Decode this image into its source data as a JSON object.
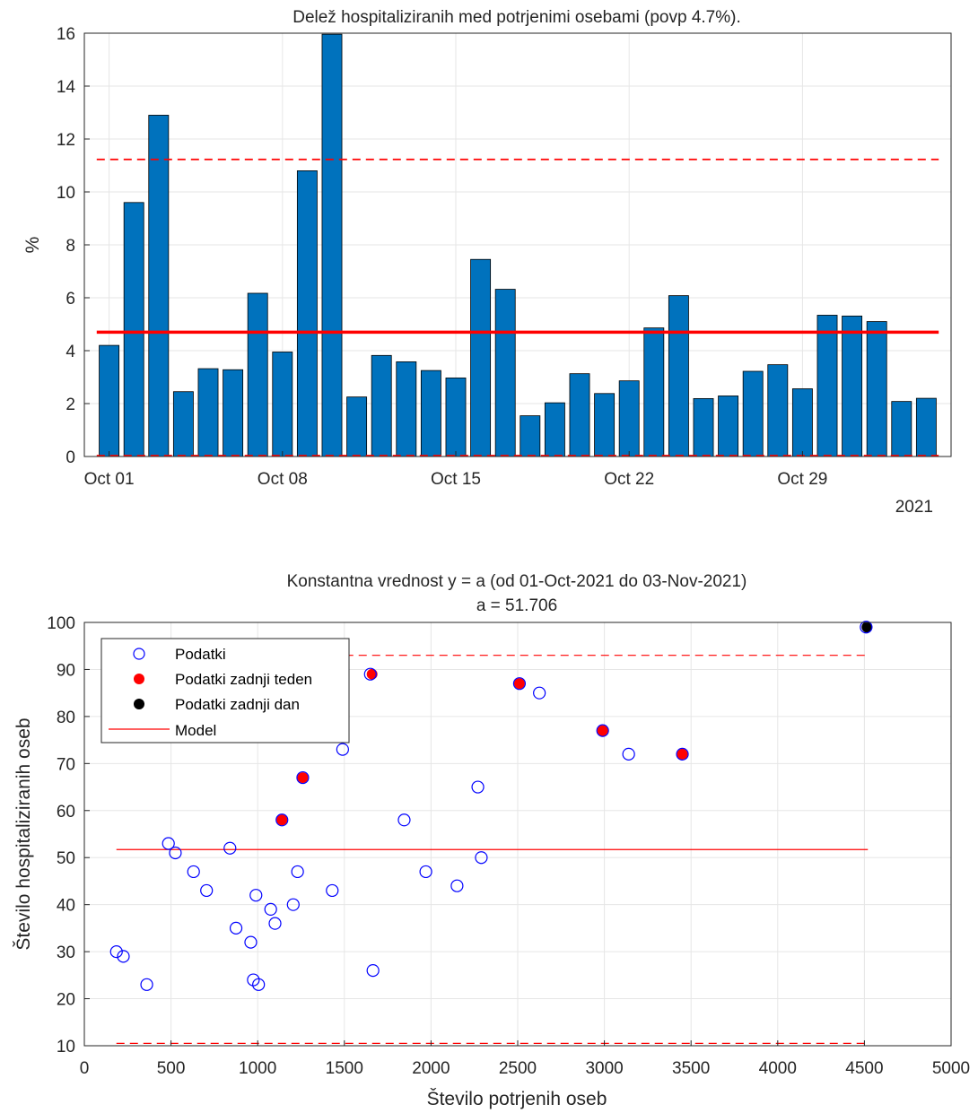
{
  "colors": {
    "bar": "#0072bd",
    "mean_line": "#ff0000",
    "threshold_line": "#ff0000",
    "model_line": "#ff0000",
    "marker_data": "#0000ff",
    "marker_last_week": "#ff0000",
    "marker_last_day": "#000000"
  },
  "chart_data": [
    {
      "type": "bar",
      "title": "Delež hospitaliziranih med potrjenimi osebami (povp 4.7%).",
      "xlabel": "",
      "ylabel": "%",
      "year_label": "2021",
      "x_tick_labels": [
        "Oct 01",
        "Oct 08",
        "Oct 15",
        "Oct 22",
        "Oct 29"
      ],
      "x_tick_dates": [
        "2021-10-01",
        "2021-10-08",
        "2021-10-15",
        "2021-10-22",
        "2021-10-29"
      ],
      "y_ticks": [
        0,
        2,
        4,
        6,
        8,
        10,
        12,
        14,
        16
      ],
      "ylim": [
        0,
        16
      ],
      "xlim": [
        "2021-09-30",
        "2021-11-04"
      ],
      "grid": true,
      "x": [
        "2021-10-01",
        "2021-10-02",
        "2021-10-03",
        "2021-10-04",
        "2021-10-05",
        "2021-10-06",
        "2021-10-07",
        "2021-10-08",
        "2021-10-09",
        "2021-10-10",
        "2021-10-11",
        "2021-10-12",
        "2021-10-13",
        "2021-10-14",
        "2021-10-15",
        "2021-10-16",
        "2021-10-17",
        "2021-10-18",
        "2021-10-19",
        "2021-10-20",
        "2021-10-21",
        "2021-10-22",
        "2021-10-23",
        "2021-10-24",
        "2021-10-25",
        "2021-10-26",
        "2021-10-27",
        "2021-10-28",
        "2021-10-29",
        "2021-10-30",
        "2021-10-31",
        "2021-11-01",
        "2021-11-02",
        "2021-11-03"
      ],
      "values": [
        4.2,
        9.6,
        12.9,
        2.45,
        3.32,
        3.28,
        6.17,
        3.95,
        10.8,
        15.96,
        2.25,
        3.82,
        3.58,
        3.25,
        2.97,
        7.45,
        6.32,
        1.54,
        2.03,
        3.13,
        2.38,
        2.86,
        4.86,
        6.08,
        2.19,
        2.29,
        3.22,
        3.47,
        2.56,
        5.34,
        5.31,
        5.1,
        2.08,
        2.2
      ],
      "mean": 4.7,
      "upper_threshold": 11.23,
      "lower_threshold": 0,
      "reference_lines_range": [
        "2021-10-01",
        "2021-11-03"
      ]
    },
    {
      "type": "scatter",
      "title": "Konstantna vrednost y = a (od 01-Oct-2021 do 03-Nov-2021)",
      "subtitle": "a = 51.706",
      "xlabel": "Število potrjenih oseb",
      "ylabel": "Število hospitaliziranih oseb",
      "xlim": [
        0,
        5000
      ],
      "ylim": [
        10,
        100
      ],
      "x_ticks": [
        0,
        500,
        1000,
        1500,
        2000,
        2500,
        3000,
        3500,
        4000,
        4500,
        5000
      ],
      "y_ticks": [
        10,
        20,
        30,
        40,
        50,
        60,
        70,
        80,
        90,
        100
      ],
      "grid": true,
      "legend_position": "top-left",
      "legend": [
        "Podatki",
        "Podatki zadnji teden",
        "Podatki zadnji dan",
        "Model"
      ],
      "model_value": 51.706,
      "model_x_range": [
        185,
        4520
      ],
      "upper_band": 93,
      "lower_band": 10.5,
      "series": [
        {
          "name": "Podatki",
          "marker": "open-circle",
          "points": [
            [
              185,
              30
            ],
            [
              225,
              29
            ],
            [
              360,
              23
            ],
            [
              485,
              53
            ],
            [
              525,
              51
            ],
            [
              630,
              47
            ],
            [
              705,
              43
            ],
            [
              840,
              52
            ],
            [
              875,
              35
            ],
            [
              960,
              32
            ],
            [
              975,
              24
            ],
            [
              990,
              42
            ],
            [
              1005,
              23
            ],
            [
              1075,
              39
            ],
            [
              1100,
              36
            ],
            [
              1205,
              40
            ],
            [
              1230,
              47
            ],
            [
              1430,
              43
            ],
            [
              1490,
              73
            ],
            [
              1650,
              89
            ],
            [
              1665,
              26
            ],
            [
              1845,
              58
            ],
            [
              1970,
              47
            ],
            [
              2150,
              44
            ],
            [
              2270,
              65
            ],
            [
              2290,
              50
            ],
            [
              2510,
              87
            ],
            [
              2625,
              85
            ],
            [
              2990,
              77
            ],
            [
              3140,
              72
            ],
            [
              3450,
              72
            ],
            [
              4510,
              99
            ],
            [
              1140,
              58
            ],
            [
              1260,
              67
            ]
          ]
        },
        {
          "name": "Podatki zadnji teden",
          "marker": "filled-circle",
          "points": [
            [
              1140,
              58
            ],
            [
              1260,
              67
            ],
            [
              1660,
              89
            ],
            [
              2510,
              87
            ],
            [
              2990,
              77
            ],
            [
              3450,
              72
            ]
          ]
        },
        {
          "name": "Podatki zadnji dan",
          "marker": "filled-circle",
          "points": [
            [
              4515,
              99
            ]
          ]
        }
      ]
    }
  ]
}
